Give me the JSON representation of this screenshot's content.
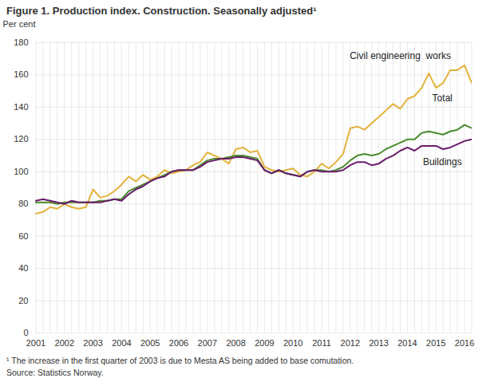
{
  "chart_data": {
    "type": "line",
    "title": "Figure 1. Production index. Construction. Seasonally adjusted¹",
    "y_label": "Per cent",
    "footnote": "¹ The increase in the first quarter of 2003 is due to Mesta AS being added to base comutation.",
    "source": "Source: Statistics Norway.",
    "categories": [
      "2001",
      null,
      null,
      null,
      "2002",
      null,
      null,
      null,
      "2003",
      null,
      null,
      null,
      "2004",
      null,
      null,
      null,
      "2005",
      null,
      null,
      null,
      "2006",
      null,
      null,
      null,
      "2007",
      null,
      null,
      null,
      "2008",
      null,
      null,
      null,
      "2009",
      null,
      null,
      null,
      "2010",
      null,
      null,
      null,
      "2011",
      null,
      null,
      null,
      "2012",
      null,
      null,
      null,
      "2013",
      null,
      null,
      null,
      "2014",
      null,
      null,
      null,
      "2015",
      null,
      null,
      null,
      "2016",
      null
    ],
    "series": [
      {
        "name": "Civil engineering  works",
        "color": "#e3b23c",
        "values": [
          74,
          75,
          78,
          77,
          80,
          78,
          77,
          78,
          89,
          84,
          85,
          88,
          92,
          97,
          94,
          98,
          95,
          97,
          101,
          99,
          100,
          101,
          104,
          106,
          112,
          110,
          108,
          105,
          114,
          115,
          112,
          113,
          103,
          101,
          100,
          101,
          102,
          98,
          97,
          100,
          105,
          102,
          106,
          111,
          127,
          128,
          126,
          130,
          134,
          138,
          142,
          139,
          145,
          147,
          152,
          161,
          152,
          155,
          163,
          163,
          166,
          155
        ]
      },
      {
        "name": "Total",
        "color": "#4a8b2c",
        "values": [
          81,
          81,
          81,
          80,
          81,
          81,
          81,
          81,
          81,
          82,
          82,
          83,
          83,
          88,
          90,
          92,
          94,
          96,
          98,
          100,
          101,
          101,
          101,
          104,
          107,
          108,
          108,
          109,
          110,
          110,
          109,
          108,
          101,
          99,
          101,
          99,
          98,
          97,
          100,
          101,
          101,
          100,
          101,
          103,
          107,
          110,
          111,
          110,
          111,
          114,
          116,
          118,
          120,
          120,
          124,
          125,
          124,
          123,
          125,
          126,
          129,
          127
        ]
      },
      {
        "name": "Buildings",
        "color": "#6a1b6b",
        "values": [
          82,
          83,
          82,
          81,
          80,
          82,
          81,
          81,
          81,
          81,
          82,
          83,
          82,
          86,
          89,
          91,
          94,
          96,
          97,
          100,
          101,
          101,
          101,
          103,
          106,
          107,
          108,
          108,
          109,
          109,
          108,
          107,
          101,
          99,
          101,
          99,
          98,
          97,
          100,
          101,
          100,
          100,
          100,
          101,
          104,
          106,
          106,
          104,
          105,
          108,
          110,
          113,
          115,
          113,
          116,
          116,
          116,
          114,
          115,
          117,
          119,
          120
        ]
      }
    ],
    "ylim": [
      0,
      180
    ],
    "yticks": [
      0,
      20,
      40,
      60,
      80,
      100,
      120,
      140,
      160,
      180
    ],
    "grid": true
  }
}
